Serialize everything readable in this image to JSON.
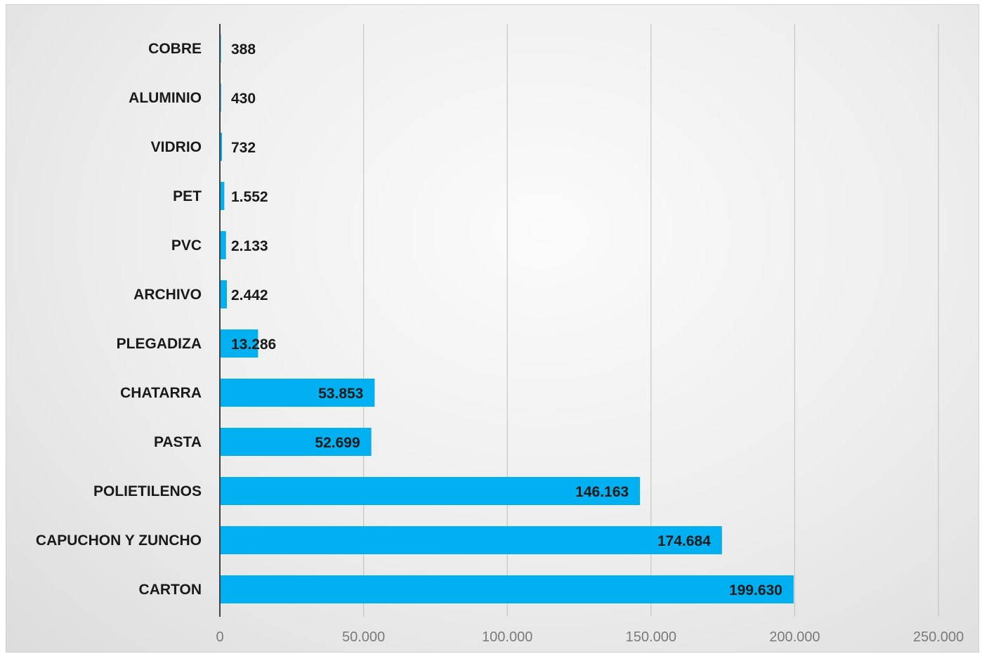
{
  "chart_data": {
    "type": "bar",
    "orientation": "horizontal",
    "categories": [
      "COBRE",
      "ALUMINIO",
      "VIDRIO",
      "PET",
      "PVC",
      "ARCHIVO",
      "PLEGADIZA",
      "CHATARRA",
      "PASTA",
      "POLIETILENOS",
      "CAPUCHON Y ZUNCHO",
      "CARTON"
    ],
    "values": [
      388,
      430,
      732,
      1552,
      2133,
      2442,
      13286,
      53853,
      52699,
      146163,
      174684,
      199630
    ],
    "value_labels": [
      "388",
      "430",
      "732",
      "1.552",
      "2.133",
      "2.442",
      "13.286",
      "53.853",
      "52.699",
      "146.163",
      "174.684",
      "199.630"
    ],
    "xlim": [
      0,
      250000
    ],
    "x_ticks": [
      0,
      50000,
      100000,
      150000,
      200000,
      250000
    ],
    "x_tick_labels": [
      "0",
      "50.000",
      "100.000",
      "150.000",
      "200.000",
      "250.000"
    ],
    "grid": true,
    "legend": "none",
    "bar_color": "#00b0f0"
  }
}
